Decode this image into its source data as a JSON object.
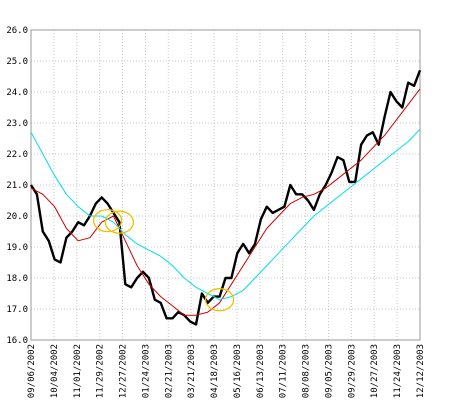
{
  "chart_data": {
    "type": "line",
    "title": "",
    "xlabel": "",
    "ylabel": "",
    "ylim": [
      16.0,
      26.0
    ],
    "yticks": [
      16.0,
      17.0,
      18.0,
      19.0,
      20.0,
      21.0,
      22.0,
      23.0,
      24.0,
      25.0,
      26.0
    ],
    "ytick_labels": [
      "16.0",
      "17.0",
      "18.0",
      "19.0",
      "20.0",
      "21.0",
      "22.0",
      "23.0",
      "24.0",
      "25.0",
      "26.0"
    ],
    "x_start": "09/06/2002",
    "x_end": "12/12/2003",
    "xtick_labels": [
      "09/06/2002",
      "10/04/2002",
      "11/01/2002",
      "11/29/2002",
      "12/27/2002",
      "01/24/2003",
      "02/21/2003",
      "03/21/2003",
      "04/18/2003",
      "05/16/2003",
      "06/13/2003",
      "07/11/2003",
      "08/08/2003",
      "09/05/2003",
      "09/29/2003",
      "10/27/2003",
      "11/24/2003",
      "12/12/2003"
    ],
    "grid": true,
    "legend": "none",
    "series": [
      {
        "color": "#000000",
        "x": [
          "09/06/2002",
          "09/13/2002",
          "09/20/2002",
          "09/27/2002",
          "10/04/2002",
          "10/11/2002",
          "10/18/2002",
          "10/25/2002",
          "11/01/2002",
          "11/08/2002",
          "11/15/2002",
          "11/22/2002",
          "11/29/2002",
          "12/06/2002",
          "12/13/2002",
          "12/20/2002",
          "12/27/2002",
          "01/03/2003",
          "01/10/2003",
          "01/17/2003",
          "01/24/2003",
          "01/31/2003",
          "02/07/2003",
          "02/14/2003",
          "02/21/2003",
          "02/28/2003",
          "03/07/2003",
          "03/14/2003",
          "03/21/2003",
          "03/28/2003",
          "04/04/2003",
          "04/11/2003",
          "04/18/2003",
          "04/25/2003",
          "05/02/2003",
          "05/09/2003",
          "05/16/2003",
          "05/23/2003",
          "05/30/2003",
          "06/06/2003",
          "06/13/2003",
          "06/20/2003",
          "06/27/2003",
          "07/04/2003",
          "07/11/2003",
          "07/18/2003",
          "07/25/2003",
          "08/01/2003",
          "08/08/2003",
          "08/15/2003",
          "08/22/2003",
          "08/29/2003",
          "09/05/2003",
          "09/12/2003",
          "09/19/2003",
          "09/26/2003",
          "10/03/2003",
          "10/10/2003",
          "10/17/2003",
          "10/24/2003",
          "10/31/2003",
          "11/07/2003",
          "11/14/2003",
          "11/21/2003",
          "11/28/2003",
          "12/05/2003",
          "12/12/2003"
        ],
        "values": [
          21.0,
          20.7,
          19.5,
          19.2,
          18.6,
          18.5,
          19.3,
          19.5,
          19.8,
          19.7,
          20.0,
          20.4,
          20.6,
          20.4,
          20.1,
          19.8,
          17.8,
          17.7,
          18.0,
          18.2,
          18.0,
          17.3,
          17.2,
          16.7,
          16.7,
          16.9,
          16.8,
          16.6,
          16.5,
          17.5,
          17.2,
          17.4,
          17.4,
          18.0,
          18.0,
          18.8,
          19.1,
          18.8,
          19.1,
          19.9,
          20.3,
          20.1,
          20.2,
          20.3,
          21.0,
          20.7,
          20.7,
          20.5,
          20.2,
          20.7,
          21.0,
          21.4,
          21.9,
          21.8,
          21.1,
          21.1,
          22.3,
          22.6,
          22.7,
          22.3,
          23.2,
          24.0,
          23.7,
          23.5,
          24.3,
          24.2,
          24.7
        ]
      },
      {
        "color": "#cc0000",
        "x": [
          "09/06/2002",
          "09/20/2002",
          "10/04/2002",
          "10/18/2002",
          "11/01/2002",
          "11/15/2002",
          "11/29/2002",
          "12/13/2002",
          "12/27/2002",
          "01/10/2003",
          "01/24/2003",
          "02/07/2003",
          "02/21/2003",
          "03/07/2003",
          "03/21/2003",
          "04/04/2003",
          "04/18/2003",
          "05/02/2003",
          "05/16/2003",
          "05/30/2003",
          "06/13/2003",
          "06/27/2003",
          "07/11/2003",
          "07/25/2003",
          "08/08/2003",
          "08/22/2003",
          "09/05/2003",
          "09/19/2003",
          "10/03/2003",
          "10/17/2003",
          "10/31/2003",
          "11/14/2003",
          "11/28/2003",
          "12/12/2003"
        ],
        "values": [
          20.9,
          20.7,
          20.3,
          19.6,
          19.2,
          19.3,
          19.8,
          20.0,
          19.2,
          18.4,
          17.8,
          17.4,
          17.1,
          16.8,
          16.8,
          16.9,
          17.2,
          17.8,
          18.4,
          19.0,
          19.6,
          20.0,
          20.4,
          20.6,
          20.7,
          20.9,
          21.2,
          21.5,
          21.8,
          22.2,
          22.6,
          23.1,
          23.6,
          24.1
        ]
      },
      {
        "color": "#00e0e8",
        "x": [
          "09/06/2002",
          "09/20/2002",
          "10/04/2002",
          "10/18/2002",
          "11/01/2002",
          "11/15/2002",
          "11/29/2002",
          "12/13/2002",
          "12/27/2002",
          "01/10/2003",
          "01/24/2003",
          "02/07/2003",
          "02/21/2003",
          "03/07/2003",
          "03/21/2003",
          "04/04/2003",
          "04/18/2003",
          "05/02/2003",
          "05/16/2003",
          "05/30/2003",
          "06/13/2003",
          "06/27/2003",
          "07/11/2003",
          "07/25/2003",
          "08/08/2003",
          "08/22/2003",
          "09/05/2003",
          "09/19/2003",
          "10/03/2003",
          "10/17/2003",
          "10/31/2003",
          "11/14/2003",
          "11/28/2003",
          "12/12/2003"
        ],
        "values": [
          22.7,
          22.0,
          21.3,
          20.7,
          20.3,
          20.0,
          20.0,
          19.8,
          19.4,
          19.1,
          18.9,
          18.7,
          18.4,
          18.0,
          17.7,
          17.5,
          17.3,
          17.4,
          17.6,
          18.0,
          18.4,
          18.8,
          19.2,
          19.6,
          20.0,
          20.3,
          20.6,
          20.9,
          21.2,
          21.5,
          21.8,
          22.1,
          22.4,
          22.8
        ]
      }
    ],
    "annotations": [
      {
        "shape": "ellipse",
        "color": "#f0c000",
        "x": "12/06/2002",
        "y": 19.85
      },
      {
        "shape": "ellipse",
        "color": "#f0c000",
        "x": "12/20/2002",
        "y": 19.8
      },
      {
        "shape": "ellipse",
        "color": "#f0c000",
        "x": "04/18/2003",
        "y": 17.3
      }
    ]
  }
}
